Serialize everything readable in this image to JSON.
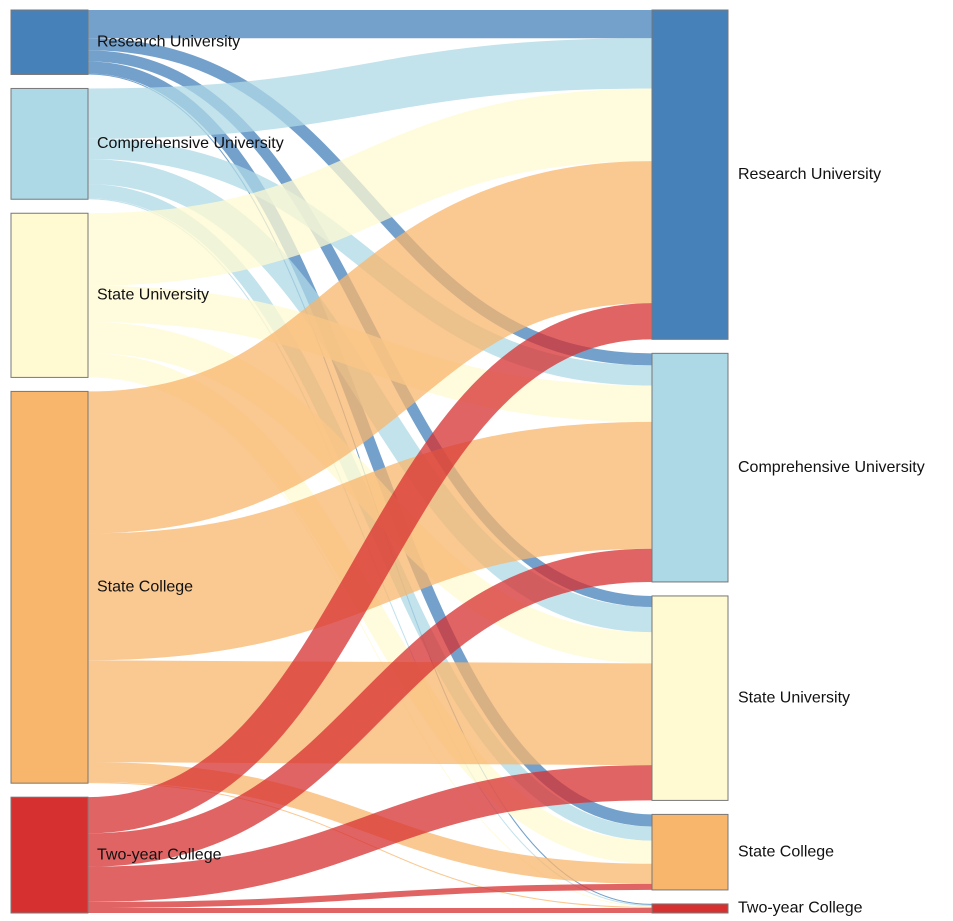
{
  "chart_data": {
    "type": "sankey",
    "nodes": [
      {
        "name": "Research University",
        "color": "#4682b9"
      },
      {
        "name": "Comprehensive University",
        "color": "#add8e6"
      },
      {
        "name": "State University",
        "color": "#fffad2"
      },
      {
        "name": "State College",
        "color": "#f8b56c"
      },
      {
        "name": "Two-year College",
        "color": "#d73030"
      }
    ],
    "links": [
      {
        "source": 0,
        "target": 0,
        "value": 28
      },
      {
        "source": 0,
        "target": 1,
        "value": 12
      },
      {
        "source": 0,
        "target": 2,
        "value": 11
      },
      {
        "source": 0,
        "target": 3,
        "value": 12
      },
      {
        "source": 0,
        "target": 4,
        "value": 1
      },
      {
        "source": 1,
        "target": 0,
        "value": 50
      },
      {
        "source": 1,
        "target": 1,
        "value": 20
      },
      {
        "source": 1,
        "target": 2,
        "value": 25
      },
      {
        "source": 1,
        "target": 3,
        "value": 14
      },
      {
        "source": 1,
        "target": 4,
        "value": 1
      },
      {
        "source": 2,
        "target": 0,
        "value": 72
      },
      {
        "source": 2,
        "target": 1,
        "value": 36
      },
      {
        "source": 2,
        "target": 2,
        "value": 31
      },
      {
        "source": 2,
        "target": 3,
        "value": 23
      },
      {
        "source": 2,
        "target": 4,
        "value": 1
      },
      {
        "source": 3,
        "target": 0,
        "value": 141
      },
      {
        "source": 3,
        "target": 1,
        "value": 126
      },
      {
        "source": 3,
        "target": 2,
        "value": 101
      },
      {
        "source": 3,
        "target": 3,
        "value": 20
      },
      {
        "source": 3,
        "target": 4,
        "value": 1
      },
      {
        "source": 4,
        "target": 0,
        "value": 36
      },
      {
        "source": 4,
        "target": 1,
        "value": 33
      },
      {
        "source": 4,
        "target": 2,
        "value": 35
      },
      {
        "source": 4,
        "target": 3,
        "value": 6
      },
      {
        "source": 4,
        "target": 4,
        "value": 5
      }
    ]
  }
}
